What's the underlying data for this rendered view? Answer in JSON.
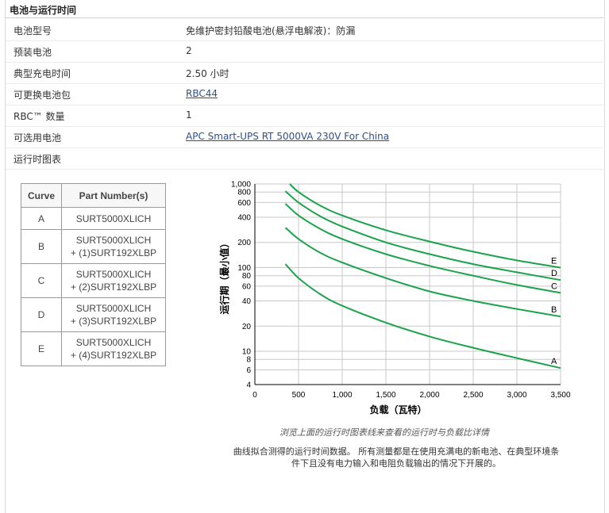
{
  "section": {
    "title": "电池与运行时间"
  },
  "specs": [
    {
      "key": "电池型号",
      "value": "免维护密封铅酸电池(悬浮电解液)：防漏",
      "link": false
    },
    {
      "key": "预装电池",
      "value": "2",
      "link": false
    },
    {
      "key": "典型充电时间",
      "value": "2.50 小时",
      "link": false
    },
    {
      "key": "可更换电池包",
      "value": "RBC44",
      "link": true
    },
    {
      "key": "RBC™ 数量",
      "value": "1",
      "link": false
    },
    {
      "key": "可选用电池",
      "value": "APC Smart-UPS RT 5000VA 230V For China",
      "link": true
    },
    {
      "key": "运行时图表",
      "value": "",
      "link": false
    }
  ],
  "curve_table": {
    "headers": [
      "Curve",
      "Part Number(s)"
    ],
    "rows": [
      {
        "curve": "A",
        "line1": "SURT5000XLICH",
        "line2": ""
      },
      {
        "curve": "B",
        "line1": "SURT5000XLICH",
        "line2": "+ (1)SURT192XLBP"
      },
      {
        "curve": "C",
        "line1": "SURT5000XLICH",
        "line2": "+ (2)SURT192XLBP"
      },
      {
        "curve": "D",
        "line1": "SURT5000XLICH",
        "line2": "+ (3)SURT192XLBP"
      },
      {
        "curve": "E",
        "line1": "SURT5000XLICH",
        "line2": "+ (4)SURT192XLBP"
      }
    ]
  },
  "captions": {
    "hint": "浏览上面的运行时图表线来查看的运行时与负载比详情",
    "note_line1": "曲线拟合测得的运行时间数据。 所有测量都是在使用充满电的新电池、在典型环境条",
    "note_line2": "件下且没有电力输入和电阻负载输出的情况下开展的。"
  },
  "chart_data": {
    "type": "line",
    "xlabel": "负载（瓦特）",
    "ylabel": "运行期（最小值）",
    "xlim": [
      0,
      3500
    ],
    "ylim": [
      4,
      1000
    ],
    "yscale": "log",
    "x_ticks": [
      0,
      500,
      1000,
      1500,
      2000,
      2500,
      3000,
      3500
    ],
    "x_tick_labels": [
      "0",
      "500",
      "1,000",
      "1,500",
      "2,000",
      "2,500",
      "3,000",
      "3,500"
    ],
    "y_ticks": [
      4,
      6,
      8,
      10,
      20,
      40,
      60,
      80,
      100,
      200,
      400,
      600,
      800,
      1000
    ],
    "y_tick_labels": [
      "4",
      "6",
      "8",
      "10",
      "20",
      "40",
      "60",
      "80",
      "100",
      "200",
      "400",
      "600",
      "800",
      "1,000"
    ],
    "grid": true,
    "line_color": "#1aa34a",
    "series": [
      {
        "name": "A",
        "x": [
          350,
          500,
          750,
          1000,
          1500,
          2000,
          2500,
          3000,
          3500
        ],
        "values": [
          110,
          75,
          48,
          35,
          22,
          15,
          11,
          8.3,
          6.3
        ]
      },
      {
        "name": "B",
        "x": [
          350,
          500,
          750,
          1000,
          1500,
          2000,
          2500,
          3000,
          3500
        ],
        "values": [
          300,
          220,
          150,
          115,
          75,
          52,
          40,
          32,
          26
        ]
      },
      {
        "name": "C",
        "x": [
          350,
          500,
          750,
          1000,
          1500,
          2000,
          2500,
          3000,
          3500
        ],
        "values": [
          580,
          420,
          290,
          220,
          145,
          105,
          80,
          62,
          50
        ]
      },
      {
        "name": "D",
        "x": [
          350,
          500,
          750,
          1000,
          1500,
          2000,
          2500,
          3000,
          3500
        ],
        "values": [
          820,
          600,
          410,
          310,
          200,
          145,
          110,
          88,
          71
        ]
      },
      {
        "name": "E",
        "x": [
          400,
          500,
          750,
          1000,
          1500,
          2000,
          2500,
          3000,
          3500
        ],
        "values": [
          1000,
          800,
          550,
          420,
          280,
          205,
          155,
          122,
          100
        ]
      }
    ]
  }
}
